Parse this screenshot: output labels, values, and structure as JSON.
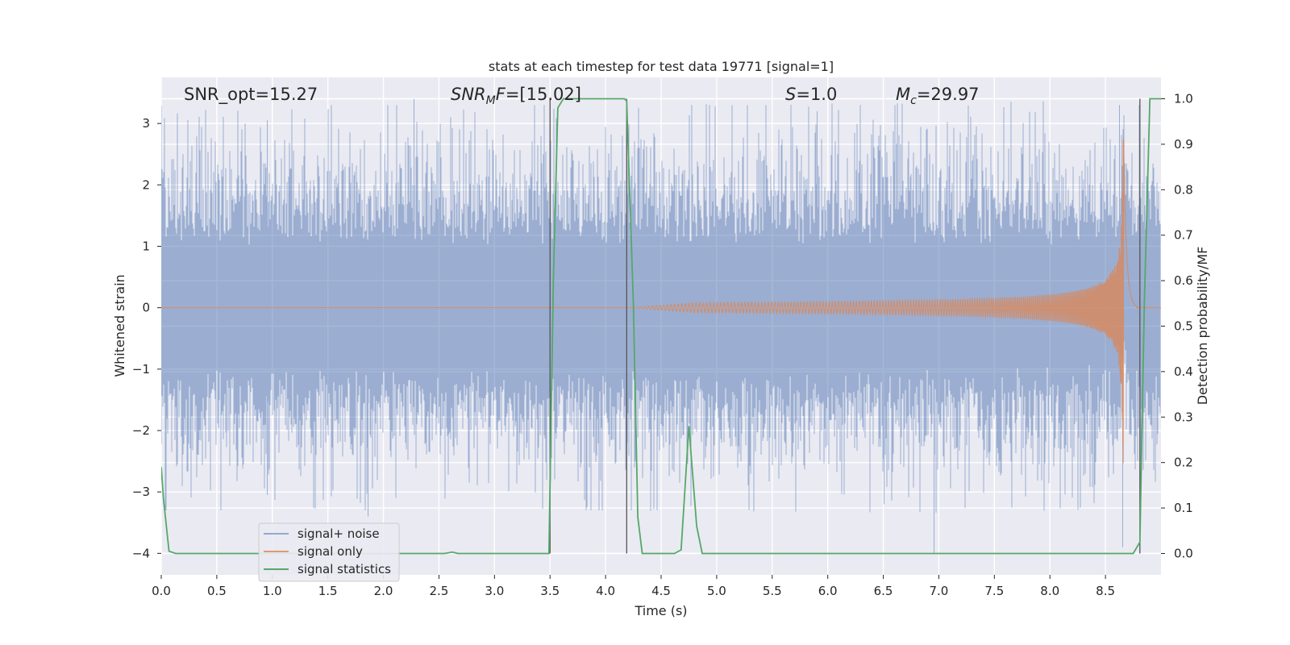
{
  "chart_data": {
    "type": "line",
    "title": "stats at each timestep for test data 19771 [signal=1]",
    "xlabel": "Time (s)",
    "ylabel": "Whitened strain",
    "y2label": "Detection probability/MF",
    "xlim": [
      0.0,
      9.0
    ],
    "ylim": [
      -4.35,
      3.75
    ],
    "y2lim": [
      -0.047,
      1.047
    ],
    "x_ticks": [
      0.0,
      0.5,
      1.0,
      1.5,
      2.0,
      2.5,
      3.0,
      3.5,
      4.0,
      4.5,
      5.0,
      5.5,
      6.0,
      6.5,
      7.0,
      7.5,
      8.0,
      8.5
    ],
    "y_ticks": [
      -4,
      -3,
      -2,
      -1,
      0,
      1,
      2,
      3
    ],
    "y2_ticks": [
      0.0,
      0.1,
      0.2,
      0.3,
      0.4,
      0.5,
      0.6,
      0.7,
      0.8,
      0.9,
      1.0
    ],
    "x_tick_labels": [
      "0.0",
      "0.5",
      "1.0",
      "1.5",
      "2.0",
      "2.5",
      "3.0",
      "3.5",
      "4.0",
      "4.5",
      "5.0",
      "5.5",
      "6.0",
      "6.5",
      "7.0",
      "7.5",
      "8.0",
      "8.5"
    ],
    "y_tick_labels": [
      "−4",
      "−3",
      "−2",
      "−1",
      "0",
      "1",
      "2",
      "3"
    ],
    "y2_tick_labels": [
      "0.0",
      "0.1",
      "0.2",
      "0.3",
      "0.4",
      "0.5",
      "0.6",
      "0.7",
      "0.8",
      "0.9",
      "1.0"
    ],
    "grid": true,
    "legend_position": "lower-left",
    "colors": {
      "background": "#eaeaf2",
      "grid": "#ffffff",
      "noise": "#4c72b0",
      "signal": "#dd8452",
      "stats": "#55a868",
      "vline": "#555555"
    },
    "annotations": {
      "snr_opt": "SNR_opt=15.27",
      "snr_mf_base": "SNR",
      "snr_mf_sub": "M",
      "snr_mf_rest": "F=[15.02]",
      "s_italic": "S",
      "s_rest": "=1.0",
      "mc_base": "M",
      "mc_sub": "c",
      "mc_rest": "=29.97"
    },
    "vertical_lines_x": [
      3.5,
      4.19,
      8.81
    ],
    "series": [
      {
        "name": "signal+ noise",
        "generated": true,
        "envelope": {
          "core_sigma": 0.55,
          "core_bound": 1.0,
          "peak_range": [
            1.4,
            3.3
          ]
        },
        "spikes": [
          [
            0.95,
            3.05
          ],
          [
            2.27,
            3.4
          ],
          [
            5.9,
            3.2
          ],
          [
            8.62,
            3.3
          ],
          [
            1.86,
            -3.4
          ],
          [
            6.95,
            -4.0
          ],
          [
            8.65,
            -3.9
          ],
          [
            0.95,
            -3.05
          ],
          [
            6.5,
            -3.2
          ]
        ]
      },
      {
        "name": "signal only",
        "generated": true,
        "chirp": {
          "start": 4.2,
          "peak_time": 8.66,
          "peak_amp": 3.2
        }
      },
      {
        "name": "signal statistics",
        "axis": "y2",
        "x": [
          0.0,
          0.02,
          0.07,
          0.13,
          2.55,
          2.62,
          2.67,
          3.49,
          3.53,
          3.57,
          3.62,
          3.67,
          4.17,
          4.19,
          4.25,
          4.29,
          4.33,
          4.62,
          4.68,
          4.75,
          4.82,
          4.87,
          8.75,
          8.81,
          8.85,
          8.9,
          8.96,
          9.0
        ],
        "y": [
          0.19,
          0.12,
          0.005,
          0.0,
          0.0,
          0.003,
          0.0,
          0.0,
          0.6,
          0.98,
          1.0,
          1.0,
          1.0,
          0.995,
          0.55,
          0.08,
          0.0,
          0.0,
          0.008,
          0.28,
          0.06,
          0.0,
          0.0,
          0.025,
          0.55,
          1.0,
          1.0,
          1.0
        ]
      }
    ]
  }
}
